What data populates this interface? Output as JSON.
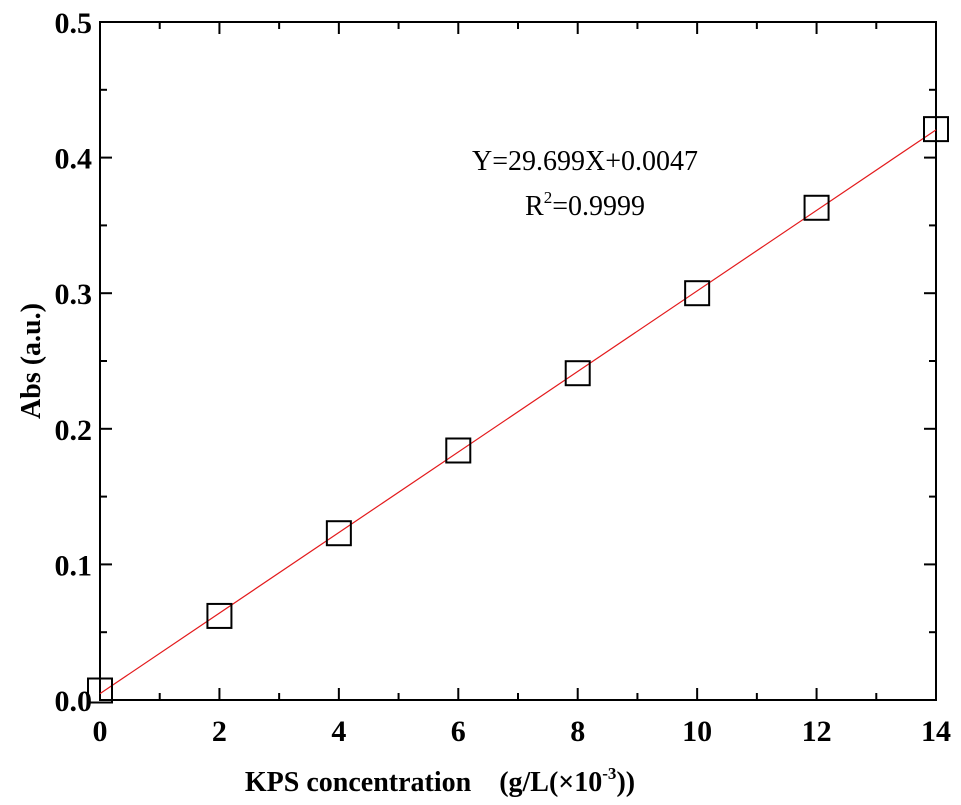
{
  "chart_data": {
    "type": "scatter",
    "xlabel_main": "KPS concentration",
    "xlabel_unit_prefix": "(g/L(×10",
    "xlabel_unit_exp": "-3",
    "xlabel_unit_suffix": "))",
    "ylabel": "Abs (a.u.)",
    "xlim": [
      0,
      14
    ],
    "ylim": [
      0,
      0.5
    ],
    "x_ticks": [
      0,
      2,
      4,
      6,
      8,
      10,
      12,
      14
    ],
    "x_tick_labels": [
      "0",
      "2",
      "4",
      "6",
      "8",
      "10",
      "12",
      "14"
    ],
    "y_ticks": [
      0,
      0.1,
      0.2,
      0.3,
      0.4,
      0.5
    ],
    "y_tick_labels": [
      "0.0",
      "0.1",
      "0.2",
      "0.3",
      "0.4",
      "0.5"
    ],
    "grid": false,
    "series": [
      {
        "marker": "open-square",
        "color": "#000000",
        "points": [
          {
            "x": 0,
            "y": 0.007
          },
          {
            "x": 2,
            "y": 0.062
          },
          {
            "x": 4,
            "y": 0.123
          },
          {
            "x": 6,
            "y": 0.184
          },
          {
            "x": 8,
            "y": 0.241
          },
          {
            "x": 10,
            "y": 0.3
          },
          {
            "x": 12,
            "y": 0.363
          },
          {
            "x": 14,
            "y": 0.421
          }
        ]
      }
    ],
    "fit_line": {
      "slope": 0.029699,
      "intercept": 0.0047,
      "color": "#e31a1c",
      "x_range": [
        0,
        14
      ]
    },
    "annotations": {
      "equation": "Y=29.699X+0.0047",
      "r_prefix": "R",
      "r_exp": "2",
      "r_value": "=0.9999"
    }
  }
}
